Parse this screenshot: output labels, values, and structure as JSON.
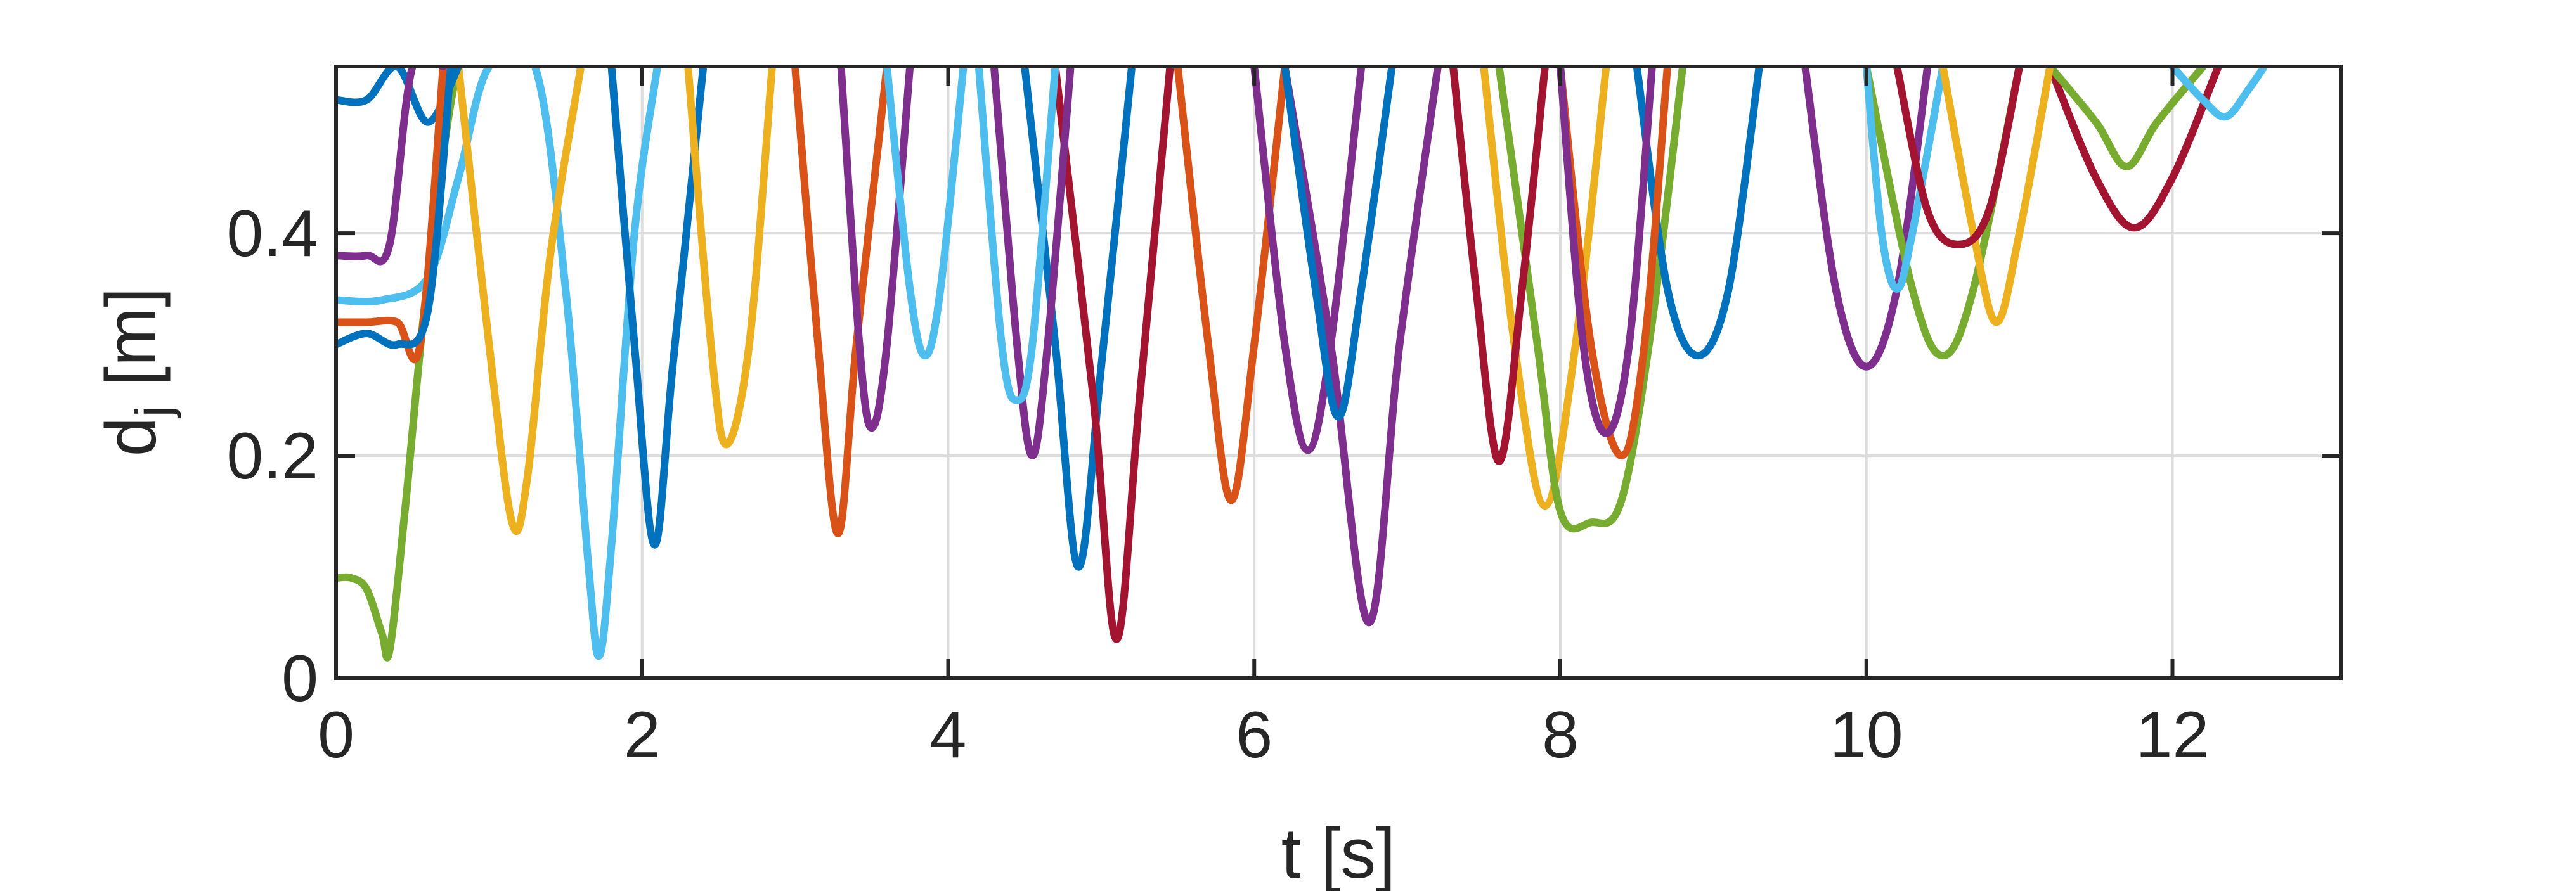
{
  "chart_data": {
    "type": "line",
    "xlabel": "t [s]",
    "ylabel_main": "d",
    "ylabel_sub": "j",
    "ylabel_unit": " [m]",
    "xlim": [
      0,
      13.1
    ],
    "ylim": [
      0,
      0.55
    ],
    "xticks": [
      0,
      2,
      4,
      6,
      8,
      10,
      12
    ],
    "yticks": [
      0,
      0.2,
      0.4
    ],
    "xtick_labels": [
      "0",
      "2",
      "4",
      "6",
      "8",
      "10",
      "12"
    ],
    "ytick_labels": [
      "0",
      "0.2",
      "0.4"
    ],
    "grid": true,
    "palette": [
      "#0072BD",
      "#D95319",
      "#EDB120",
      "#7E2F8E",
      "#77AC30",
      "#4DBEEE",
      "#A2142F"
    ],
    "series": [
      {
        "color": "#77AC30",
        "x": [
          0,
          0.1,
          0.2,
          0.3,
          0.35,
          0.45,
          0.6,
          0.8,
          1.0
        ],
        "y": [
          0.09,
          0.09,
          0.08,
          0.04,
          0.025,
          0.15,
          0.36,
          0.55,
          0.55
        ]
      },
      {
        "color": "#4DBEEE",
        "x": [
          0,
          0.3,
          0.6,
          0.8,
          1.0,
          1.3,
          1.5,
          1.65,
          1.72,
          1.8,
          1.95,
          2.1
        ],
        "y": [
          0.34,
          0.34,
          0.36,
          0.45,
          0.55,
          0.55,
          0.35,
          0.1,
          0.02,
          0.12,
          0.4,
          0.55
        ]
      },
      {
        "color": "#0072BD",
        "x": [
          1.8,
          1.95,
          2.08,
          2.2,
          2.4
        ],
        "y": [
          0.55,
          0.3,
          0.12,
          0.28,
          0.55
        ]
      },
      {
        "color": "#EDB120",
        "x": [
          0.8,
          1.0,
          1.15,
          1.25,
          1.4,
          1.6
        ],
        "y": [
          0.55,
          0.3,
          0.14,
          0.18,
          0.38,
          0.55
        ]
      },
      {
        "color": "#D95319",
        "x": [
          3.0,
          3.15,
          3.28,
          3.4,
          3.6
        ],
        "y": [
          0.55,
          0.3,
          0.13,
          0.3,
          0.55
        ]
      },
      {
        "color": "#0072BD",
        "x": [
          4.5,
          4.7,
          4.85,
          5.0,
          5.2
        ],
        "y": [
          0.55,
          0.3,
          0.1,
          0.28,
          0.55
        ]
      },
      {
        "color": "#A2142F",
        "x": [
          4.7,
          4.95,
          5.1,
          5.25,
          5.45
        ],
        "y": [
          0.55,
          0.25,
          0.035,
          0.25,
          0.55
        ]
      },
      {
        "color": "#7E2F8E",
        "x": [
          6.2,
          6.5,
          6.75,
          6.95,
          7.2
        ],
        "y": [
          0.55,
          0.3,
          0.05,
          0.3,
          0.55
        ]
      },
      {
        "color": "#D95319",
        "x": [
          5.5,
          5.7,
          5.85,
          6.0,
          6.2
        ],
        "y": [
          0.55,
          0.3,
          0.16,
          0.3,
          0.55
        ]
      },
      {
        "color": "#EDB120",
        "x": [
          7.5,
          7.7,
          7.9,
          8.1,
          8.3
        ],
        "y": [
          0.55,
          0.3,
          0.155,
          0.3,
          0.55
        ]
      },
      {
        "color": "#77AC30",
        "x": [
          7.6,
          7.85,
          8.0,
          8.2,
          8.4,
          8.6,
          8.8
        ],
        "y": [
          0.55,
          0.3,
          0.15,
          0.14,
          0.16,
          0.32,
          0.55
        ]
      },
      {
        "color": "#A2142F",
        "x": [
          11.2,
          11.5,
          11.75,
          12.0,
          12.3
        ],
        "y": [
          0.55,
          0.45,
          0.405,
          0.45,
          0.55
        ]
      },
      {
        "color": "#77AC30",
        "x": [
          11.2,
          11.5,
          11.7,
          11.9,
          12.2
        ],
        "y": [
          0.55,
          0.5,
          0.46,
          0.5,
          0.55
        ]
      },
      {
        "color": "#4DBEEE",
        "x": [
          12.0,
          12.2,
          12.35,
          12.5,
          12.6
        ],
        "y": [
          0.55,
          0.52,
          0.505,
          0.53,
          0.55
        ]
      },
      {
        "color": "#7E2F8E",
        "x": [
          9.6,
          9.8,
          10.0,
          10.2,
          10.4
        ],
        "y": [
          0.55,
          0.35,
          0.28,
          0.35,
          0.55
        ]
      },
      {
        "color": "#0072BD",
        "x": [
          8.5,
          8.7,
          8.9,
          9.1,
          9.3
        ],
        "y": [
          0.55,
          0.35,
          0.29,
          0.35,
          0.55
        ]
      },
      {
        "color": "#77AC30",
        "x": [
          10.0,
          10.3,
          10.5,
          10.7,
          11.0
        ],
        "y": [
          0.55,
          0.35,
          0.29,
          0.35,
          0.55
        ]
      },
      {
        "color": "#0072BD",
        "x": [
          0,
          0.2,
          0.4,
          0.6,
          0.8
        ],
        "y": [
          0.52,
          0.52,
          0.55,
          0.5,
          0.55
        ]
      },
      {
        "color": "#D95319",
        "x": [
          0,
          0.2,
          0.4,
          0.55,
          0.7
        ],
        "y": [
          0.32,
          0.32,
          0.32,
          0.3,
          0.55
        ]
      },
      {
        "color": "#7E2F8E",
        "x": [
          0,
          0.2,
          0.35,
          0.5,
          0.7
        ],
        "y": [
          0.38,
          0.38,
          0.39,
          0.55,
          0.55
        ]
      },
      {
        "color": "#0072BD",
        "x": [
          0,
          0.2,
          0.4,
          0.6,
          0.75
        ],
        "y": [
          0.3,
          0.31,
          0.3,
          0.33,
          0.55
        ]
      },
      {
        "color": "#EDB120",
        "x": [
          2.3,
          2.45,
          2.55,
          2.7,
          2.85
        ],
        "y": [
          0.55,
          0.3,
          0.21,
          0.3,
          0.55
        ]
      },
      {
        "color": "#7E2F8E",
        "x": [
          3.3,
          3.42,
          3.5,
          3.6,
          3.75
        ],
        "y": [
          0.55,
          0.3,
          0.225,
          0.3,
          0.55
        ]
      },
      {
        "color": "#4DBEEE",
        "x": [
          3.6,
          3.75,
          3.85,
          3.95,
          4.1
        ],
        "y": [
          0.55,
          0.35,
          0.29,
          0.35,
          0.55
        ]
      },
      {
        "color": "#7E2F8E",
        "x": [
          4.3,
          4.45,
          4.55,
          4.65,
          4.8
        ],
        "y": [
          0.55,
          0.3,
          0.2,
          0.3,
          0.55
        ]
      },
      {
        "color": "#4DBEEE",
        "x": [
          4.2,
          4.35,
          4.45,
          4.55,
          4.7
        ],
        "y": [
          0.55,
          0.3,
          0.25,
          0.3,
          0.55
        ]
      },
      {
        "color": "#7E2F8E",
        "x": [
          6.0,
          6.2,
          6.35,
          6.5,
          6.7
        ],
        "y": [
          0.55,
          0.3,
          0.205,
          0.3,
          0.55
        ]
      },
      {
        "color": "#0072BD",
        "x": [
          6.2,
          6.4,
          6.55,
          6.7,
          6.9
        ],
        "y": [
          0.55,
          0.35,
          0.235,
          0.35,
          0.55
        ]
      },
      {
        "color": "#A2142F",
        "x": [
          7.3,
          7.45,
          7.6,
          7.75,
          7.9
        ],
        "y": [
          0.55,
          0.35,
          0.195,
          0.35,
          0.55
        ]
      },
      {
        "color": "#D95319",
        "x": [
          8.0,
          8.2,
          8.4,
          8.55,
          8.7
        ],
        "y": [
          0.55,
          0.3,
          0.2,
          0.3,
          0.55
        ]
      },
      {
        "color": "#7E2F8E",
        "x": [
          8.0,
          8.15,
          8.3,
          8.45,
          8.6
        ],
        "y": [
          0.55,
          0.3,
          0.22,
          0.3,
          0.55
        ]
      },
      {
        "color": "#4DBEEE",
        "x": [
          10.0,
          10.1,
          10.2,
          10.3,
          10.5
        ],
        "y": [
          0.55,
          0.4,
          0.35,
          0.4,
          0.55
        ]
      },
      {
        "color": "#EDB120",
        "x": [
          10.5,
          10.7,
          10.85,
          11.0,
          11.2
        ],
        "y": [
          0.55,
          0.4,
          0.32,
          0.4,
          0.55
        ]
      },
      {
        "color": "#A2142F",
        "x": [
          10.2,
          10.4,
          10.6,
          10.8,
          11.0
        ],
        "y": [
          0.55,
          0.42,
          0.39,
          0.42,
          0.55
        ]
      }
    ]
  }
}
